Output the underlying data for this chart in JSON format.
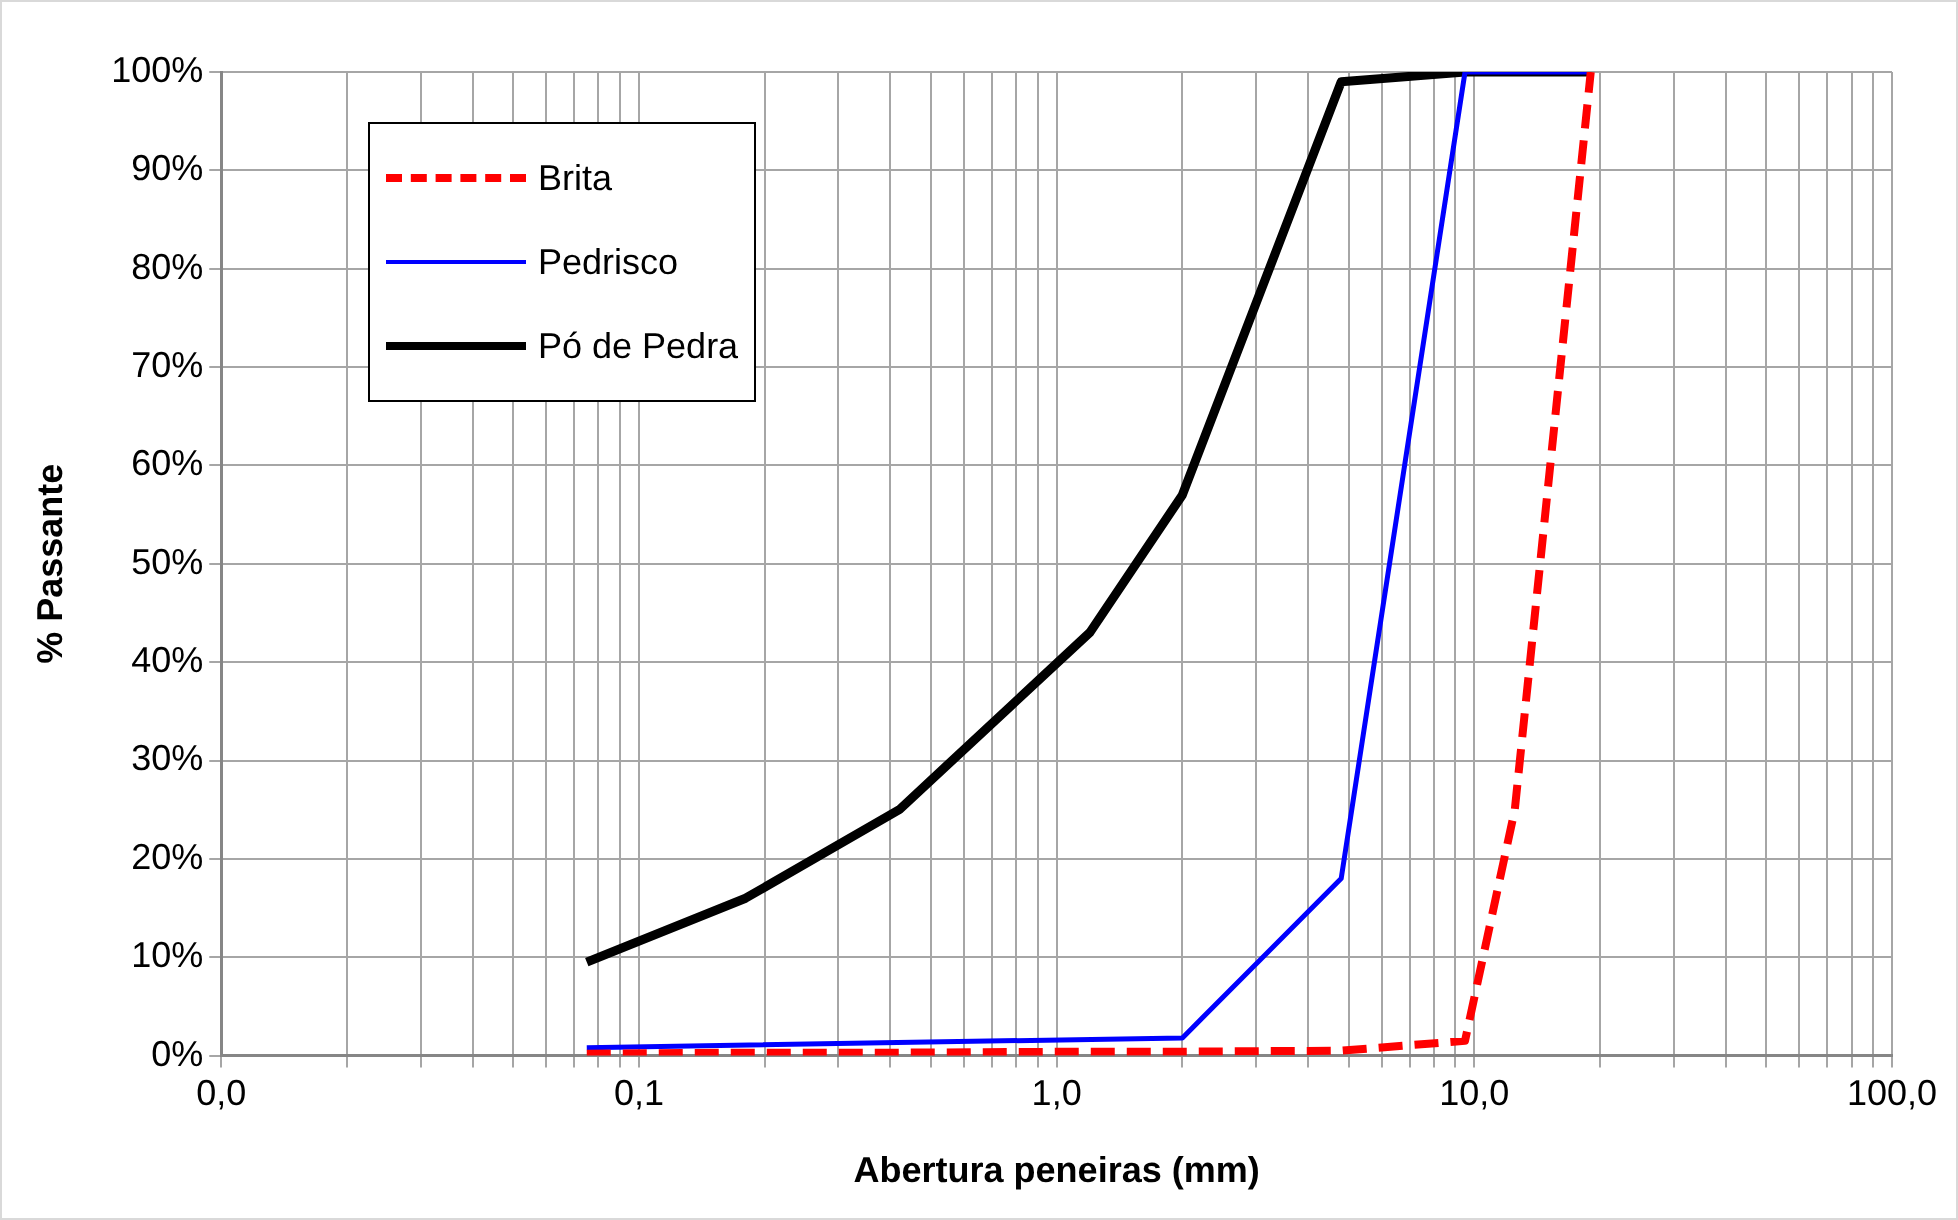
{
  "chart_data": {
    "type": "line",
    "xlabel": "Abertura peneiras (mm)",
    "ylabel": "% Passante",
    "log": "x",
    "grid": true,
    "legend": "top left",
    "marker": "none",
    "xlim": [
      0.01,
      100
    ],
    "xticks": [
      {
        "value": 0.01,
        "label": "0,0"
      },
      {
        "value": 0.02,
        "label": null
      },
      {
        "value": 0.03,
        "label": null
      },
      {
        "value": 0.04,
        "label": null
      },
      {
        "value": 0.05,
        "label": null
      },
      {
        "value": 0.06,
        "label": null
      },
      {
        "value": 0.07,
        "label": null
      },
      {
        "value": 0.08,
        "label": null
      },
      {
        "value": 0.09,
        "label": null
      },
      {
        "value": 0.1,
        "label": "0,1"
      },
      {
        "value": 0.2,
        "label": null
      },
      {
        "value": 0.3,
        "label": null
      },
      {
        "value": 0.4,
        "label": null
      },
      {
        "value": 0.5,
        "label": null
      },
      {
        "value": 0.6,
        "label": null
      },
      {
        "value": 0.7,
        "label": null
      },
      {
        "value": 0.8,
        "label": null
      },
      {
        "value": 0.9,
        "label": null
      },
      {
        "value": 1,
        "label": "1,0"
      },
      {
        "value": 2,
        "label": null
      },
      {
        "value": 3,
        "label": null
      },
      {
        "value": 4,
        "label": null
      },
      {
        "value": 5,
        "label": null
      },
      {
        "value": 6,
        "label": null
      },
      {
        "value": 7,
        "label": null
      },
      {
        "value": 8,
        "label": null
      },
      {
        "value": 9,
        "label": null
      },
      {
        "value": 10,
        "label": "10,0"
      },
      {
        "value": 20,
        "label": null
      },
      {
        "value": 30,
        "label": null
      },
      {
        "value": 40,
        "label": null
      },
      {
        "value": 50,
        "label": null
      },
      {
        "value": 60,
        "label": null
      },
      {
        "value": 70,
        "label": null
      },
      {
        "value": 80,
        "label": null
      },
      {
        "value": 90,
        "label": null
      },
      {
        "value": 100,
        "label": "100,0"
      }
    ],
    "ylim": [
      0,
      100
    ],
    "yticks": [
      {
        "value": 0,
        "label": "0%"
      },
      {
        "value": 10,
        "label": "10%"
      },
      {
        "value": 20,
        "label": "20%"
      },
      {
        "value": 30,
        "label": "30%"
      },
      {
        "value": 40,
        "label": "40%"
      },
      {
        "value": 50,
        "label": "50%"
      },
      {
        "value": 60,
        "label": "60%"
      },
      {
        "value": 70,
        "label": "70%"
      },
      {
        "value": 80,
        "label": "80%"
      },
      {
        "value": 90,
        "label": "90%"
      },
      {
        "value": 100,
        "label": "100%"
      }
    ],
    "series": [
      {
        "name": "Brita",
        "color": "#ff0000",
        "line_style": "dashed",
        "x": [
          0.075,
          0.18,
          0.42,
          1.2,
          2.0,
          4.8,
          9.5,
          12.5,
          19
        ],
        "values": [
          0.2,
          0.3,
          0.3,
          0.4,
          0.4,
          0.5,
          1.5,
          25,
          100
        ]
      },
      {
        "name": "Pedrisco",
        "color": "#0000ff",
        "line_style": "solid",
        "x": [
          0.075,
          2.0,
          4.8,
          9.5,
          19
        ],
        "values": [
          0.8,
          1.8,
          18,
          100,
          100
        ]
      },
      {
        "name": "Pó de Pedra",
        "color": "#000000",
        "line_style": "solid",
        "x": [
          0.075,
          0.18,
          0.42,
          1.2,
          2.0,
          4.8,
          9.5,
          19
        ],
        "values": [
          9.5,
          16,
          25,
          43,
          57,
          99,
          100,
          100
        ]
      }
    ]
  }
}
